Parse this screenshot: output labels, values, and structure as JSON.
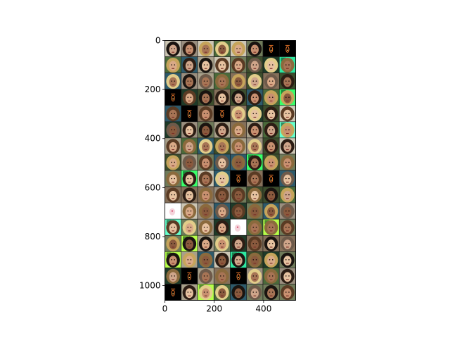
{
  "chart_data": {
    "type": "heatmap",
    "description": "image grid",
    "grid": {
      "rows": 16,
      "cols": 8
    },
    "xlim": [
      0,
      530
    ],
    "ylim": [
      1060,
      0
    ],
    "xticks": [
      0,
      200,
      400
    ],
    "yticks": [
      0,
      200,
      400,
      600,
      800,
      1000
    ],
    "xtick_labels": [
      "0",
      "200",
      "400"
    ],
    "ytick_labels": [
      "0",
      "200",
      "400",
      "600",
      "800",
      "1000"
    ],
    "title": "",
    "xlabel": "",
    "ylabel": "",
    "palette": {
      "skin": [
        "#d9a987",
        "#c89070",
        "#a77455",
        "#e6c2a0",
        "#8a5a3e",
        "#cfa58a"
      ],
      "hair": [
        "#2c1d14",
        "#5a3b24",
        "#8b6a3d",
        "#c6a45b",
        "#e2cd8a",
        "#1a1410",
        "#6e5a4a"
      ],
      "background": [
        "#6f7b5a",
        "#3c4d2c",
        "#a8a08a",
        "#2d5a6b",
        "#85705a",
        "#4a6a3a",
        "#ccc6b4",
        "#1e3a28",
        "#9a8f7f"
      ],
      "neon": [
        "#39ff6a",
        "#66ffcc",
        "#2ee8a0",
        "#b6ff4a"
      ],
      "black": "#000000",
      "white": "#ffffff",
      "glyph": "#e8752a"
    }
  }
}
